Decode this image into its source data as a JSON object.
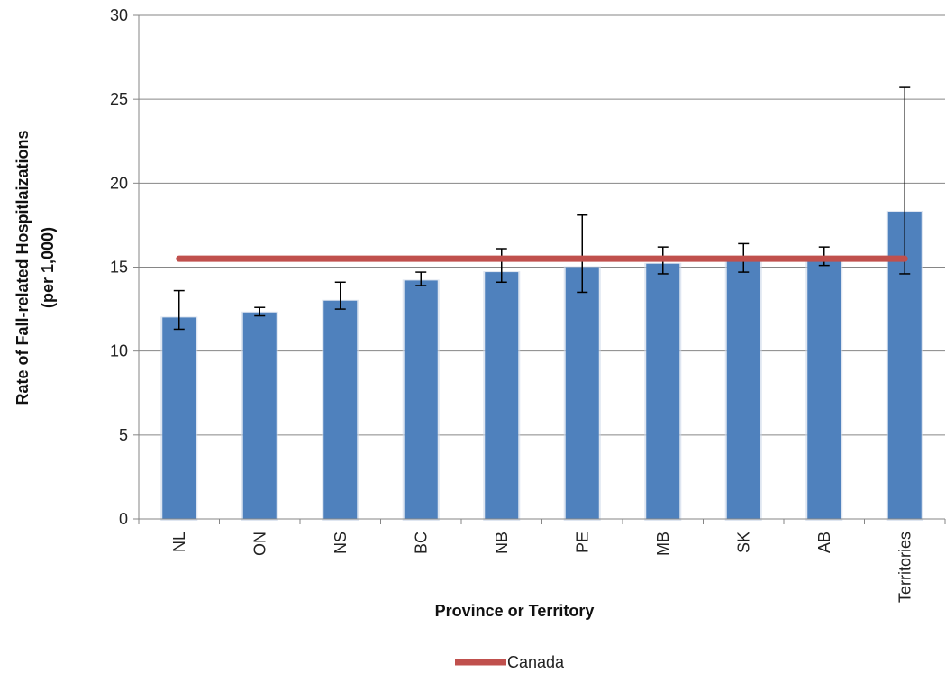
{
  "chart_data": {
    "type": "bar",
    "title": "",
    "xlabel": "Province or Territory",
    "ylabel_lines": [
      "Rate of Fall-related  Hospitlaizations",
      "(per 1,000)"
    ],
    "ylim": [
      0,
      30
    ],
    "yticks": [
      0,
      5,
      10,
      15,
      20,
      25,
      30
    ],
    "grid": true,
    "categories": [
      "NL",
      "ON",
      "NS",
      "BC",
      "NB",
      "PE",
      "MB",
      "SK",
      "AB",
      "Territories"
    ],
    "series": [
      {
        "values": [
          12.0,
          12.3,
          13.0,
          14.2,
          14.7,
          15.0,
          15.2,
          15.5,
          15.6,
          18.3
        ],
        "error_low": [
          11.3,
          12.1,
          12.5,
          13.9,
          14.1,
          13.5,
          14.6,
          14.7,
          15.1,
          14.6
        ],
        "error_high": [
          13.6,
          12.6,
          14.1,
          14.7,
          16.1,
          18.1,
          16.2,
          16.4,
          16.2,
          25.7
        ],
        "color": "#4f81bd"
      },
      {
        "name": "Canada",
        "type": "line",
        "value": 15.5,
        "color": "#c0504d"
      }
    ],
    "legend": {
      "position": "bottom",
      "entries": [
        "Canada"
      ]
    }
  }
}
